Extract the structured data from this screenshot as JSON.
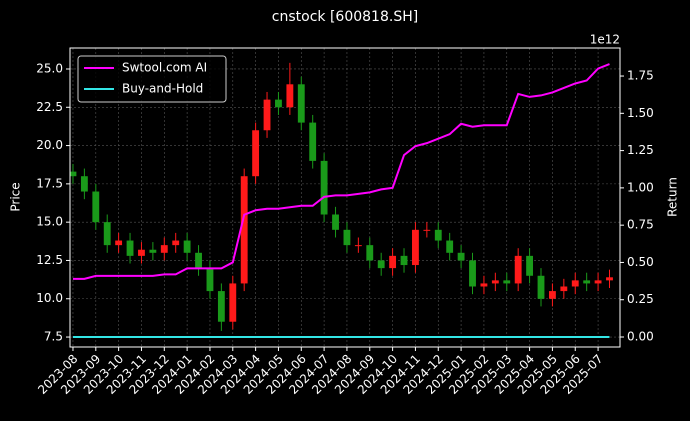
{
  "chart_data": {
    "type": "candlestick",
    "title": "cnstock [600818.SH]",
    "ylabel": "Price",
    "y2label": "Return",
    "y2_offset_label": "1e12",
    "x": [
      0,
      0.5,
      1,
      1.5,
      2,
      2.5,
      3,
      3.5,
      4,
      4.5,
      5,
      5.5,
      6,
      6.5,
      7,
      7.5,
      8,
      8.5,
      9,
      9.5,
      10,
      10.5,
      11,
      11.5,
      12,
      12.5,
      13,
      13.5,
      14,
      14.5,
      15,
      15.5,
      16,
      16.5,
      17,
      17.5,
      18,
      18.5,
      19,
      19.5,
      20,
      20.5,
      21,
      21.5,
      22,
      22.5,
      23,
      23.5
    ],
    "open": [
      18.3,
      18.0,
      17.0,
      15.0,
      13.5,
      13.8,
      12.8,
      13.2,
      13.0,
      13.5,
      13.8,
      13.0,
      12.0,
      10.5,
      8.5,
      11.0,
      18.0,
      21.0,
      23.0,
      22.5,
      24.0,
      21.5,
      19.0,
      15.5,
      14.5,
      13.5,
      13.5,
      12.5,
      12.0,
      12.8,
      12.2,
      14.5,
      14.5,
      13.8,
      13.0,
      12.5,
      10.8,
      11.0,
      11.2,
      11.0,
      12.8,
      11.5,
      10.0,
      10.5,
      10.8,
      11.2,
      11.0,
      11.2
    ],
    "high": [
      18.8,
      18.5,
      17.5,
      15.5,
      14.3,
      14.3,
      13.7,
      13.7,
      14.0,
      14.3,
      14.3,
      13.5,
      12.5,
      11.0,
      11.5,
      18.5,
      21.5,
      23.5,
      23.5,
      25.4,
      24.5,
      22.0,
      19.5,
      16.0,
      15.0,
      14.0,
      14.0,
      13.0,
      13.3,
      13.3,
      15.0,
      15.0,
      15.0,
      14.3,
      13.5,
      13.0,
      11.5,
      11.7,
      11.7,
      13.3,
      13.3,
      12.0,
      11.0,
      11.3,
      11.7,
      11.7,
      11.7,
      11.9
    ],
    "low": [
      17.5,
      16.5,
      14.5,
      13.0,
      13.0,
      12.3,
      12.3,
      12.5,
      12.5,
      13.0,
      12.5,
      11.5,
      10.0,
      7.9,
      8.0,
      10.5,
      17.5,
      20.5,
      22.0,
      22.0,
      21.0,
      18.5,
      15.0,
      14.0,
      13.0,
      13.0,
      12.0,
      11.5,
      11.5,
      11.7,
      11.7,
      14.0,
      13.3,
      12.5,
      12.0,
      10.3,
      10.3,
      10.5,
      10.5,
      10.5,
      11.0,
      9.5,
      9.5,
      10.0,
      10.3,
      10.5,
      10.5,
      10.7
    ],
    "close": [
      18.0,
      17.0,
      15.0,
      13.5,
      13.8,
      12.8,
      13.2,
      13.0,
      13.5,
      13.8,
      13.0,
      12.0,
      10.5,
      8.5,
      11.0,
      18.0,
      21.0,
      23.0,
      22.5,
      24.0,
      21.5,
      19.0,
      15.5,
      14.5,
      13.5,
      13.5,
      12.5,
      12.0,
      12.8,
      12.2,
      14.5,
      14.5,
      13.8,
      13.0,
      12.5,
      10.8,
      11.0,
      11.2,
      11.0,
      12.8,
      11.5,
      10.0,
      10.5,
      10.8,
      11.2,
      11.0,
      11.2,
      11.4
    ],
    "up_color": "#ff1a1a",
    "down_color": "#1a9a1a",
    "series": [
      {
        "name": "Swtool.com AI",
        "color": "#ff00ff",
        "axis": "y2",
        "values": [
          0.39,
          0.39,
          0.41,
          0.41,
          0.41,
          0.41,
          0.41,
          0.41,
          0.42,
          0.42,
          0.46,
          0.46,
          0.46,
          0.46,
          0.5,
          0.82,
          0.85,
          0.86,
          0.86,
          0.87,
          0.88,
          0.88,
          0.94,
          0.95,
          0.95,
          0.96,
          0.97,
          0.99,
          1.0,
          1.22,
          1.28,
          1.3,
          1.33,
          1.36,
          1.43,
          1.41,
          1.42,
          1.42,
          1.42,
          1.63,
          1.61,
          1.62,
          1.64,
          1.67,
          1.7,
          1.72,
          1.8,
          1.83
        ]
      },
      {
        "name": "Buy-and-Hold",
        "color": "#33e6e6",
        "axis": "y2",
        "values": [
          0,
          0,
          0,
          0,
          0,
          0,
          0,
          0,
          0,
          0,
          0,
          0,
          0,
          0,
          0,
          0,
          0,
          0,
          0,
          0,
          0,
          0,
          0,
          0,
          0,
          0,
          0,
          0,
          0,
          0,
          0,
          0,
          0,
          0,
          0,
          0,
          0,
          0,
          0,
          0,
          0,
          0,
          0,
          0,
          0,
          0,
          0,
          0
        ]
      }
    ],
    "xlim": [
      -0.13,
      23.96
    ],
    "xticks": [
      {
        "value": 0,
        "label": "2023-08"
      },
      {
        "value": 1,
        "label": "2023-09"
      },
      {
        "value": 2,
        "label": "2023-10"
      },
      {
        "value": 3,
        "label": "2023-11"
      },
      {
        "value": 4,
        "label": "2023-12"
      },
      {
        "value": 5,
        "label": "2024-01"
      },
      {
        "value": 6,
        "label": "2024-02"
      },
      {
        "value": 7,
        "label": "2024-03"
      },
      {
        "value": 8,
        "label": "2024-04"
      },
      {
        "value": 9,
        "label": "2024-05"
      },
      {
        "value": 10,
        "label": "2024-06"
      },
      {
        "value": 11,
        "label": "2024-07"
      },
      {
        "value": 12,
        "label": "2024-08"
      },
      {
        "value": 13,
        "label": "2024-09"
      },
      {
        "value": 14,
        "label": "2024-10"
      },
      {
        "value": 15,
        "label": "2024-11"
      },
      {
        "value": 16,
        "label": "2024-12"
      },
      {
        "value": 17,
        "label": "2025-01"
      },
      {
        "value": 18,
        "label": "2025-02"
      },
      {
        "value": 19,
        "label": "2025-03"
      },
      {
        "value": 20,
        "label": "2025-04"
      },
      {
        "value": 21,
        "label": "2025-05"
      },
      {
        "value": 22,
        "label": "2025-06"
      },
      {
        "value": 23,
        "label": "2025-07"
      }
    ],
    "ylim": [
      6.85,
      26.37
    ],
    "yticks": [
      7.5,
      {
        "value": 10,
        "label": "10.0"
      },
      12.5,
      {
        "value": 15,
        "label": "15.0"
      },
      17.5,
      {
        "value": 20,
        "label": "20.0"
      },
      22.5,
      {
        "value": 25,
        "label": "25.0"
      }
    ],
    "y2lim": [
      -0.067,
      1.938
    ],
    "y2ticks": [
      {
        "value": 0,
        "label": "0.00"
      },
      {
        "value": 0.25,
        "label": "0.25"
      },
      {
        "value": 0.5,
        "label": "0.50"
      },
      {
        "value": 0.75,
        "label": "0.75"
      },
      {
        "value": 1,
        "label": "1.00"
      },
      {
        "value": 1.25,
        "label": "1.25"
      },
      {
        "value": 1.5,
        "label": "1.50"
      },
      {
        "value": 1.75,
        "label": "1.75"
      }
    ],
    "grid": true,
    "legend": "upper left"
  }
}
